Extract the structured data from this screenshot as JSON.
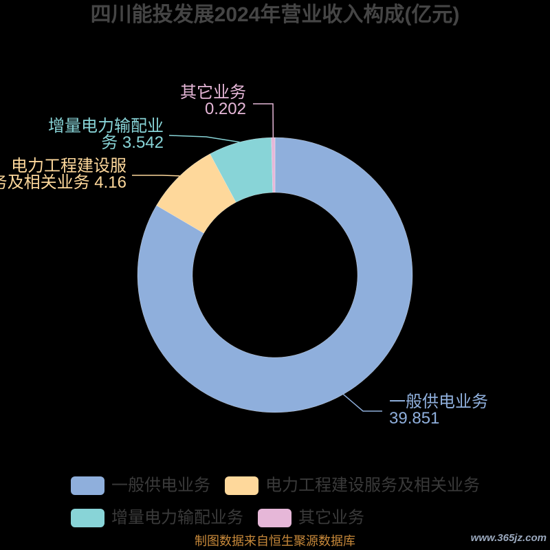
{
  "chart_data": {
    "type": "pie",
    "donut": true,
    "title": "四川能投发展2024年营业收入构成(亿元)",
    "categories": [
      "一般供电业务",
      "电力工程建设服务及相关业务",
      "增量电力输配业务",
      "其它业务"
    ],
    "values": [
      39.851,
      4.16,
      3.542,
      0.202
    ],
    "colors": [
      "#8fafdc",
      "#fed89b",
      "#88d4d7",
      "#e6b7d8"
    ],
    "legend": "bottom"
  },
  "footer": {
    "source": "制图数据来自恒生聚源数据库"
  },
  "watermark": {
    "text": "www.365jz.com"
  },
  "theme": {
    "background": "#000000",
    "title_color": "#454545",
    "legend_text_color": "#3a3a3a",
    "source_color": "#c8893a",
    "watermark_color": "#9aa8bd"
  }
}
